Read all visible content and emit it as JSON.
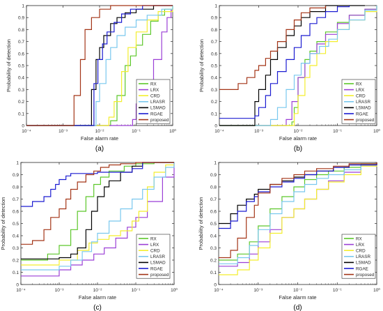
{
  "figure": {
    "colors": {
      "RX": "#5cc72a",
      "LRX": "#9b3fd6",
      "CRD": "#f3ee2c",
      "LRASR": "#79c8ee",
      "LSMAD": "#000000",
      "RGAE": "#1b1bd1",
      "proposed": "#a33416"
    },
    "y_tick_labels": [
      "0",
      "0.1",
      "0.2",
      "0.3",
      "0.4",
      "0.5",
      "0.6",
      "0.7",
      "0.8",
      "0.9",
      "1"
    ]
  },
  "chart_data": [
    {
      "panel": "(a)",
      "type": "line",
      "xscale": "log",
      "xlim": [
        0.0001,
        1
      ],
      "ylim": [
        0,
        1
      ],
      "xlabel": "False alarm rate",
      "ylabel": "Probability of detection",
      "x_tick_labels": [
        "10⁻⁴",
        "10⁻³",
        "10⁻²",
        "10⁻¹",
        "10⁰"
      ],
      "legend_position": "bottom-right",
      "series": [
        {
          "name": "RX",
          "color": "#5cc72a",
          "x": [
            0.0001,
            0.01,
            0.02,
            0.03,
            0.05,
            0.07,
            0.1,
            0.15,
            0.25,
            0.4,
            0.6,
            1
          ],
          "y": [
            0,
            0,
            0.04,
            0.25,
            0.5,
            0.58,
            0.67,
            0.76,
            0.87,
            0.92,
            0.97,
            1
          ]
        },
        {
          "name": "LRX",
          "color": "#9b3fd6",
          "x": [
            0.0001,
            0.05,
            0.08,
            0.1,
            0.15,
            0.2,
            0.3,
            0.5,
            0.7,
            0.9,
            1
          ],
          "y": [
            0,
            0,
            0.05,
            0.18,
            0.28,
            0.38,
            0.55,
            0.78,
            0.9,
            0.96,
            0.96
          ]
        },
        {
          "name": "CRD",
          "color": "#f3ee2c",
          "x": [
            0.0001,
            0.012,
            0.018,
            0.025,
            0.04,
            0.06,
            0.1,
            0.2,
            0.4,
            1
          ],
          "y": [
            0,
            0,
            0.07,
            0.2,
            0.45,
            0.65,
            0.78,
            0.88,
            0.95,
            1
          ]
        },
        {
          "name": "LRASR",
          "color": "#79c8ee",
          "x": [
            0.0001,
            0.006,
            0.008,
            0.01,
            0.015,
            0.02,
            0.03,
            0.05,
            0.1,
            0.2,
            0.5,
            1
          ],
          "y": [
            0,
            0,
            0.2,
            0.35,
            0.55,
            0.65,
            0.75,
            0.82,
            0.88,
            0.92,
            0.97,
            1
          ]
        },
        {
          "name": "LSMAD",
          "color": "#000000",
          "x": [
            0.0001,
            0.004,
            0.006,
            0.008,
            0.01,
            0.013,
            0.02,
            0.03,
            0.05,
            0.1,
            0.3,
            1
          ],
          "y": [
            0,
            0,
            0.3,
            0.55,
            0.65,
            0.75,
            0.85,
            0.9,
            0.94,
            0.97,
            1,
            1
          ]
        },
        {
          "name": "RGAE",
          "color": "#1b1bd1",
          "x": [
            0.0001,
            0.005,
            0.007,
            0.009,
            0.012,
            0.016,
            0.025,
            0.04,
            0.07,
            0.15,
            1
          ],
          "y": [
            0,
            0,
            0.35,
            0.55,
            0.68,
            0.78,
            0.86,
            0.93,
            0.97,
            1,
            1
          ]
        },
        {
          "name": "proposed",
          "color": "#a33416",
          "x": [
            0.0001,
            0.0012,
            0.002,
            0.003,
            0.004,
            0.006,
            0.01,
            0.02,
            0.05,
            1
          ],
          "y": [
            0,
            0,
            0.25,
            0.55,
            0.8,
            0.9,
            0.97,
            1,
            1,
            1
          ]
        }
      ]
    },
    {
      "panel": "(b)",
      "type": "line",
      "xscale": "log",
      "xlim": [
        0.0001,
        1
      ],
      "ylim": [
        0,
        1
      ],
      "xlabel": "False alarm rate",
      "ylabel": "Probability of detection",
      "x_tick_labels": [
        "10⁻⁴",
        "10⁻³",
        "10⁻²",
        "10⁻¹",
        "10⁰"
      ],
      "legend_position": "bottom-right",
      "series": [
        {
          "name": "RX",
          "color": "#5cc72a",
          "x": [
            0.0001,
            0.005,
            0.007,
            0.008,
            0.01,
            0.015,
            0.02,
            0.03,
            0.05,
            0.1,
            0.2,
            0.5,
            1
          ],
          "y": [
            0,
            0,
            0.03,
            0.15,
            0.4,
            0.55,
            0.62,
            0.7,
            0.78,
            0.86,
            0.92,
            0.97,
            1
          ]
        },
        {
          "name": "LRX",
          "color": "#9b3fd6",
          "x": [
            0.0001,
            0.003,
            0.005,
            0.007,
            0.01,
            0.015,
            0.02,
            0.03,
            0.05,
            0.1,
            0.2,
            0.5,
            1
          ],
          "y": [
            0,
            0,
            0.05,
            0.2,
            0.4,
            0.52,
            0.6,
            0.68,
            0.76,
            0.85,
            0.92,
            0.97,
            1
          ]
        },
        {
          "name": "CRD",
          "color": "#f3ee2c",
          "x": [
            0.0001,
            0.006,
            0.008,
            0.01,
            0.015,
            0.02,
            0.03,
            0.05,
            0.1,
            0.2,
            0.5,
            1
          ],
          "y": [
            0,
            0,
            0.1,
            0.25,
            0.4,
            0.5,
            0.6,
            0.7,
            0.8,
            0.88,
            0.95,
            1
          ]
        },
        {
          "name": "LRASR",
          "color": "#79c8ee",
          "x": [
            0.0001,
            0.0012,
            0.002,
            0.003,
            0.005,
            0.008,
            0.012,
            0.02,
            0.035,
            0.06,
            0.1,
            0.2,
            0.5,
            1
          ],
          "y": [
            0,
            0,
            0.05,
            0.15,
            0.3,
            0.42,
            0.52,
            0.6,
            0.66,
            0.72,
            0.8,
            0.88,
            0.96,
            1
          ]
        },
        {
          "name": "LSMAD",
          "color": "#000000",
          "x": [
            0.0001,
            0.0006,
            0.0008,
            0.001,
            0.0015,
            0.002,
            0.003,
            0.005,
            0.008,
            0.012,
            0.02,
            0.05,
            0.1,
            0.2,
            0.5
          ],
          "y": [
            0,
            0,
            0.2,
            0.3,
            0.42,
            0.55,
            0.65,
            0.75,
            0.83,
            0.9,
            0.95,
            1,
            1,
            1,
            1
          ]
        },
        {
          "name": "RGAE",
          "color": "#1b1bd1",
          "x": [
            0.0001,
            0.0002,
            0.0005,
            0.0008,
            0.001,
            0.0015,
            0.002,
            0.003,
            0.005,
            0.008,
            0.012,
            0.02,
            0.03,
            0.05,
            0.1,
            0.2
          ],
          "y": [
            0.06,
            0.06,
            0.06,
            0.08,
            0.15,
            0.25,
            0.35,
            0.45,
            0.55,
            0.65,
            0.75,
            0.85,
            0.9,
            0.95,
            0.99,
            1
          ]
        },
        {
          "name": "proposed",
          "color": "#a33416",
          "x": [
            0.0001,
            0.0002,
            0.0003,
            0.0005,
            0.0008,
            0.001,
            0.0015,
            0.002,
            0.003,
            0.005,
            0.008,
            0.012,
            0.02,
            0.05
          ],
          "y": [
            0.3,
            0.3,
            0.35,
            0.4,
            0.46,
            0.5,
            0.56,
            0.62,
            0.7,
            0.8,
            0.88,
            0.94,
            0.98,
            1
          ]
        }
      ]
    },
    {
      "panel": "(c)",
      "type": "line",
      "xscale": "log",
      "xlim": [
        0.0001,
        1
      ],
      "ylim": [
        0,
        1
      ],
      "xlabel": "False alarm rate",
      "ylabel": "Probability of detection",
      "x_tick_labels": [
        "10⁻⁴",
        "10⁻³",
        "10⁻²",
        "10⁻¹",
        "10⁰"
      ],
      "legend_position": "bottom-right",
      "series": [
        {
          "name": "RX",
          "color": "#5cc72a",
          "x": [
            0.0001,
            0.0005,
            0.001,
            0.002,
            0.003,
            0.005,
            0.008,
            0.012,
            0.02,
            0.05,
            0.1,
            0.3,
            1
          ],
          "y": [
            0.2,
            0.25,
            0.32,
            0.45,
            0.6,
            0.72,
            0.82,
            0.88,
            0.93,
            0.97,
            0.99,
            1,
            1
          ]
        },
        {
          "name": "LRX",
          "color": "#9b3fd6",
          "x": [
            0.0001,
            0.0005,
            0.001,
            0.002,
            0.004,
            0.008,
            0.015,
            0.03,
            0.06,
            0.1,
            0.2,
            0.5,
            1
          ],
          "y": [
            0.07,
            0.07,
            0.12,
            0.16,
            0.2,
            0.25,
            0.3,
            0.38,
            0.47,
            0.55,
            0.68,
            0.88,
            1
          ]
        },
        {
          "name": "CRD",
          "color": "#f3ee2c",
          "x": [
            0.0001,
            0.001,
            0.003,
            0.006,
            0.01,
            0.02,
            0.04,
            0.08,
            0.12,
            0.2,
            0.3,
            0.6,
            1
          ],
          "y": [
            0.16,
            0.2,
            0.28,
            0.34,
            0.37,
            0.4,
            0.44,
            0.52,
            0.6,
            0.8,
            0.92,
            0.98,
            1
          ]
        },
        {
          "name": "LRASR",
          "color": "#79c8ee",
          "x": [
            0.0001,
            0.001,
            0.002,
            0.004,
            0.007,
            0.01,
            0.02,
            0.04,
            0.08,
            0.15,
            0.3,
            0.6,
            1
          ],
          "y": [
            0.12,
            0.15,
            0.2,
            0.27,
            0.35,
            0.42,
            0.52,
            0.62,
            0.7,
            0.78,
            0.88,
            0.96,
            1
          ]
        },
        {
          "name": "LSMAD",
          "color": "#000000",
          "x": [
            0.0001,
            0.001,
            0.002,
            0.003,
            0.005,
            0.007,
            0.01,
            0.015,
            0.02,
            0.04,
            0.08,
            0.15,
            1
          ],
          "y": [
            0.21,
            0.22,
            0.25,
            0.3,
            0.45,
            0.6,
            0.72,
            0.8,
            0.85,
            0.92,
            0.97,
            1,
            1
          ]
        },
        {
          "name": "RGAE",
          "color": "#1b1bd1",
          "x": [
            0.0001,
            0.0002,
            0.0004,
            0.0006,
            0.0008,
            0.001,
            0.0015,
            0.002,
            0.004,
            0.01,
            0.03,
            0.08,
            0.15,
            1
          ],
          "y": [
            0.64,
            0.68,
            0.72,
            0.78,
            0.82,
            0.86,
            0.89,
            0.91,
            0.91,
            0.92,
            0.92,
            0.95,
            1,
            1
          ]
        },
        {
          "name": "proposed",
          "color": "#a33416",
          "x": [
            0.0001,
            0.0002,
            0.0004,
            0.0006,
            0.001,
            0.0015,
            0.002,
            0.003,
            0.005,
            0.008,
            0.012,
            0.02,
            0.04,
            0.1,
            1
          ],
          "y": [
            0.33,
            0.36,
            0.45,
            0.55,
            0.62,
            0.7,
            0.78,
            0.84,
            0.9,
            0.93,
            0.96,
            0.98,
            0.99,
            1,
            1
          ]
        }
      ]
    },
    {
      "panel": "(d)",
      "type": "line",
      "xscale": "log",
      "xlim": [
        0.0001,
        1
      ],
      "ylim": [
        0,
        1
      ],
      "xlabel": "False alarm rate",
      "ylabel": "Probability of detection",
      "x_tick_labels": [
        "10⁻⁴",
        "10⁻³",
        "10⁻²",
        "10⁻¹",
        "10⁰"
      ],
      "legend_position": "bottom-right",
      "series": [
        {
          "name": "RX",
          "color": "#5cc72a",
          "x": [
            0.0001,
            0.0003,
            0.0006,
            0.001,
            0.002,
            0.004,
            0.008,
            0.015,
            0.03,
            0.06,
            0.15,
            0.4,
            1
          ],
          "y": [
            0.2,
            0.25,
            0.35,
            0.48,
            0.62,
            0.72,
            0.8,
            0.86,
            0.9,
            0.93,
            0.96,
            0.99,
            1
          ]
        },
        {
          "name": "LRX",
          "color": "#9b3fd6",
          "x": [
            0.0001,
            0.0003,
            0.0006,
            0.001,
            0.002,
            0.004,
            0.008,
            0.015,
            0.03,
            0.06,
            0.15,
            0.4,
            1
          ],
          "y": [
            0.15,
            0.18,
            0.25,
            0.35,
            0.45,
            0.55,
            0.62,
            0.7,
            0.78,
            0.85,
            0.92,
            0.98,
            1
          ]
        },
        {
          "name": "CRD",
          "color": "#f3ee2c",
          "x": [
            0.0001,
            0.0003,
            0.0006,
            0.001,
            0.002,
            0.004,
            0.008,
            0.015,
            0.03,
            0.06,
            0.15,
            0.4,
            1
          ],
          "y": [
            0.08,
            0.12,
            0.2,
            0.3,
            0.42,
            0.55,
            0.62,
            0.7,
            0.78,
            0.84,
            0.9,
            0.97,
            1
          ]
        },
        {
          "name": "LRASR",
          "color": "#79c8ee",
          "x": [
            0.0001,
            0.0003,
            0.0006,
            0.001,
            0.002,
            0.004,
            0.008,
            0.015,
            0.03,
            0.06,
            0.15,
            0.4,
            1
          ],
          "y": [
            0.17,
            0.22,
            0.32,
            0.45,
            0.58,
            0.68,
            0.76,
            0.82,
            0.87,
            0.9,
            0.94,
            0.98,
            1
          ]
        },
        {
          "name": "LSMAD",
          "color": "#000000",
          "x": [
            0.0001,
            0.0002,
            0.0003,
            0.0005,
            0.0008,
            0.001,
            0.002,
            0.004,
            0.008,
            0.015,
            0.03,
            0.08,
            0.2,
            1
          ],
          "y": [
            0.5,
            0.58,
            0.65,
            0.7,
            0.74,
            0.78,
            0.82,
            0.85,
            0.88,
            0.9,
            0.93,
            0.96,
            0.98,
            1
          ]
        },
        {
          "name": "RGAE",
          "color": "#1b1bd1",
          "x": [
            0.0001,
            0.0002,
            0.0003,
            0.0005,
            0.0008,
            0.001,
            0.002,
            0.004,
            0.008,
            0.015,
            0.03,
            0.08,
            0.2,
            1
          ],
          "y": [
            0.46,
            0.52,
            0.6,
            0.68,
            0.72,
            0.76,
            0.8,
            0.84,
            0.87,
            0.9,
            0.93,
            0.96,
            0.98,
            1
          ]
        },
        {
          "name": "proposed",
          "color": "#a33416",
          "x": [
            0.0001,
            0.0002,
            0.0003,
            0.0005,
            0.0008,
            0.001,
            0.002,
            0.004,
            0.008,
            0.015,
            0.03,
            0.08,
            0.2,
            1
          ],
          "y": [
            0.22,
            0.28,
            0.38,
            0.55,
            0.65,
            0.75,
            0.82,
            0.87,
            0.9,
            0.93,
            0.95,
            0.97,
            0.99,
            1
          ]
        }
      ]
    }
  ]
}
